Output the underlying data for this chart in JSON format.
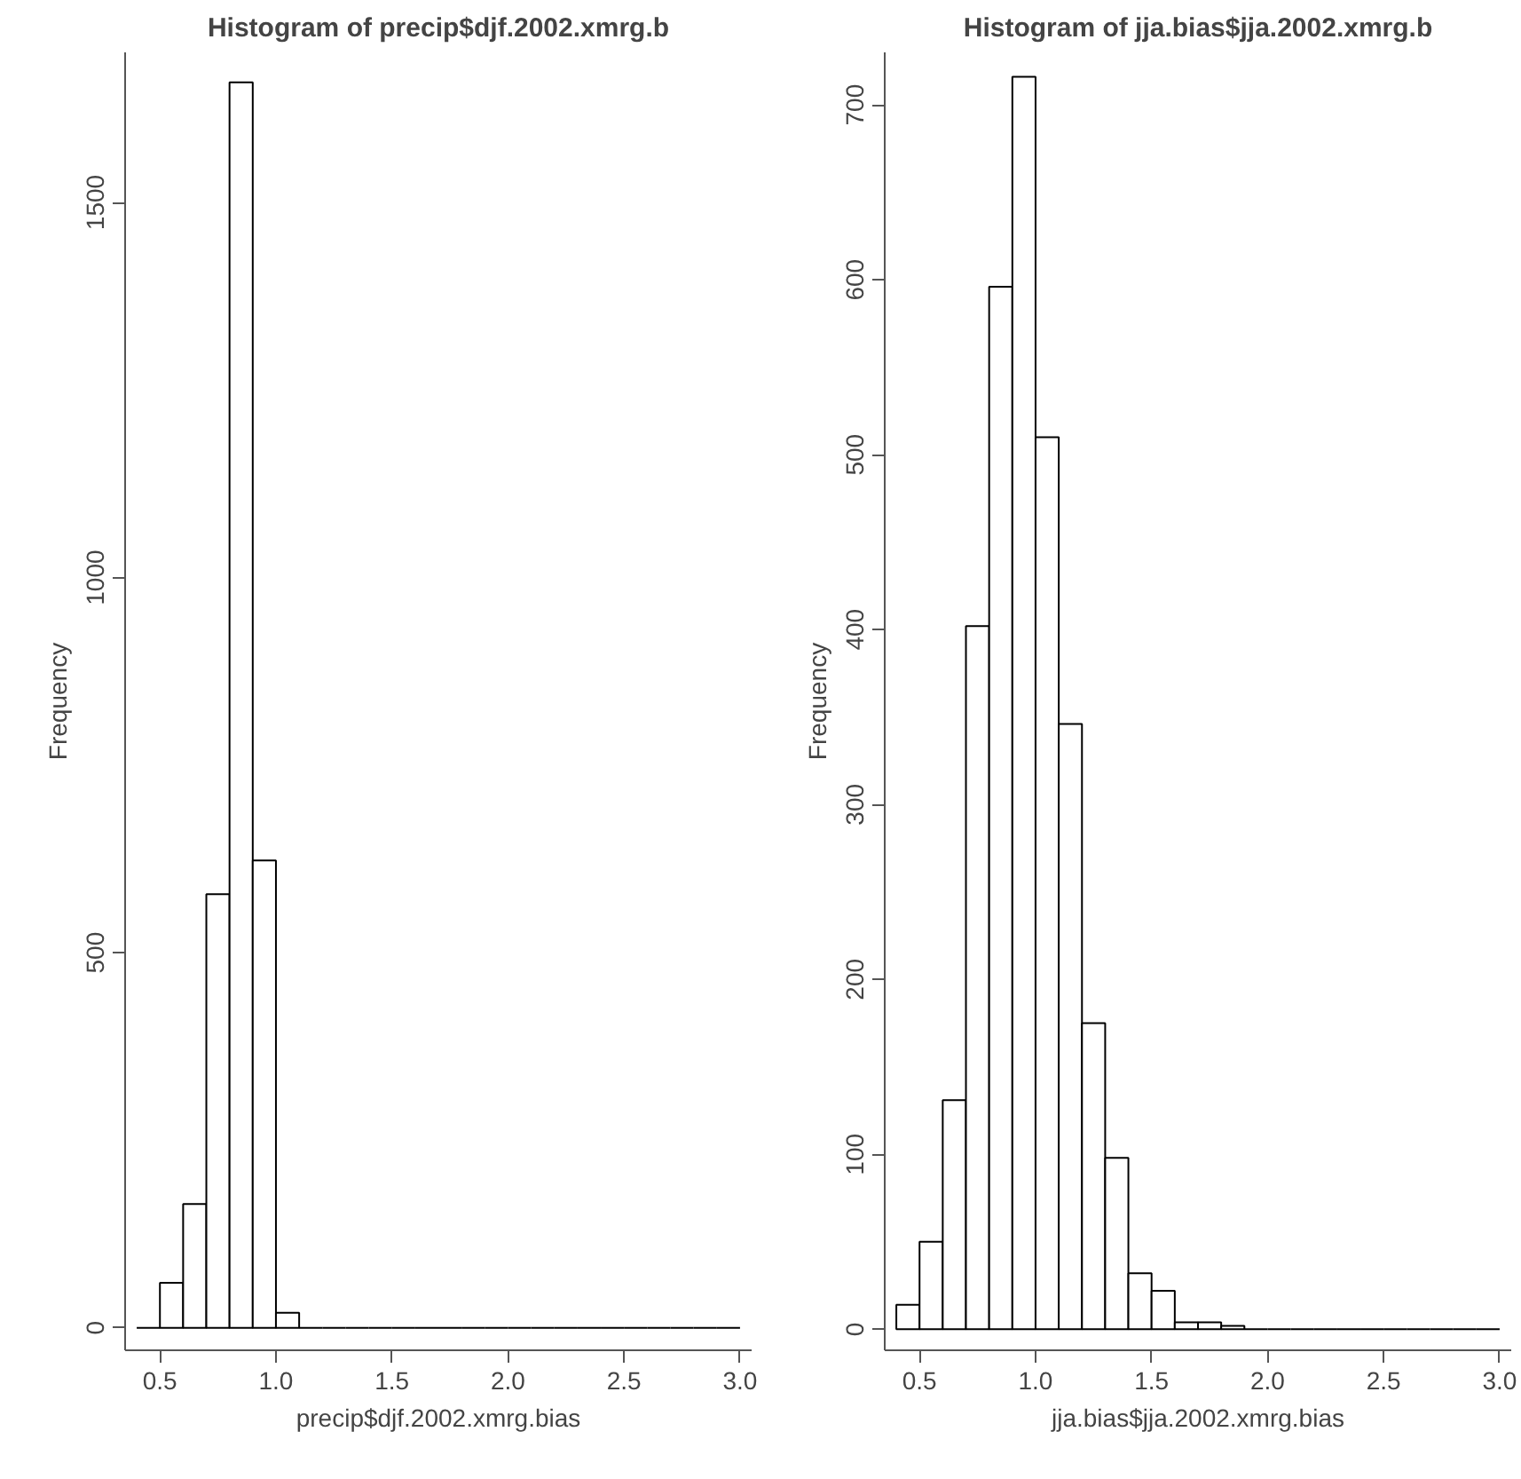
{
  "chart_data": [
    {
      "type": "histogram",
      "title": "Histogram of precip$djf.2002.xmrg.b",
      "xlabel": "precip$djf.2002.xmrg.bias",
      "ylabel": "Frequency",
      "bins": [
        0.4,
        0.5,
        0.6,
        0.7,
        0.8,
        0.9,
        1.0,
        1.1,
        1.2,
        1.3,
        1.4,
        1.5,
        1.6,
        1.7,
        1.8,
        1.9,
        2.0,
        2.1,
        2.2,
        2.3,
        2.4,
        2.5,
        2.6,
        2.7,
        2.8,
        2.9,
        3.0
      ],
      "values": [
        0,
        60,
        165,
        578,
        1660,
        623,
        20,
        0,
        0,
        0,
        0,
        0,
        0,
        0,
        0,
        0,
        0,
        0,
        0,
        0,
        0,
        0,
        0,
        0,
        0,
        0
      ],
      "xlim": [
        0.35,
        3.05
      ],
      "ylim": [
        -30,
        1700
      ],
      "xticks": [
        0.5,
        {
          "value": 1.0,
          "label": "1.0"
        },
        1.5,
        {
          "value": 2.0,
          "label": "2.0"
        },
        2.5,
        {
          "value": 3.0,
          "label": "3.0"
        }
      ],
      "yticks": [
        0,
        500,
        1000,
        1500
      ],
      "grid": false
    },
    {
      "type": "histogram",
      "title": "Histogram of jja.bias$jja.2002.xmrg.b",
      "xlabel": "jja.bias$jja.2002.xmrg.bias",
      "ylabel": "Frequency",
      "bins": [
        0.4,
        0.5,
        0.6,
        0.7,
        0.8,
        0.9,
        1.0,
        1.1,
        1.2,
        1.3,
        1.4,
        1.5,
        1.6,
        1.7,
        1.8,
        1.9,
        2.0,
        2.1,
        2.2,
        2.3,
        2.4,
        2.5,
        2.6,
        2.7,
        2.8,
        2.9,
        3.0
      ],
      "values": [
        14,
        50,
        131,
        402,
        596,
        716,
        510,
        346,
        175,
        98,
        32,
        22,
        4,
        4,
        2,
        0,
        0,
        0,
        0,
        0,
        0,
        0,
        0,
        0,
        0,
        0
      ],
      "xlim": [
        0.35,
        3.05
      ],
      "ylim": [
        -12,
        730
      ],
      "xticks": [
        0.5,
        {
          "value": 1.0,
          "label": "1.0"
        },
        1.5,
        {
          "value": 2.0,
          "label": "2.0"
        },
        2.5,
        {
          "value": 3.0,
          "label": "3.0"
        }
      ],
      "yticks": [
        0,
        100,
        200,
        300,
        400,
        500,
        600,
        700
      ],
      "grid": false
    }
  ]
}
